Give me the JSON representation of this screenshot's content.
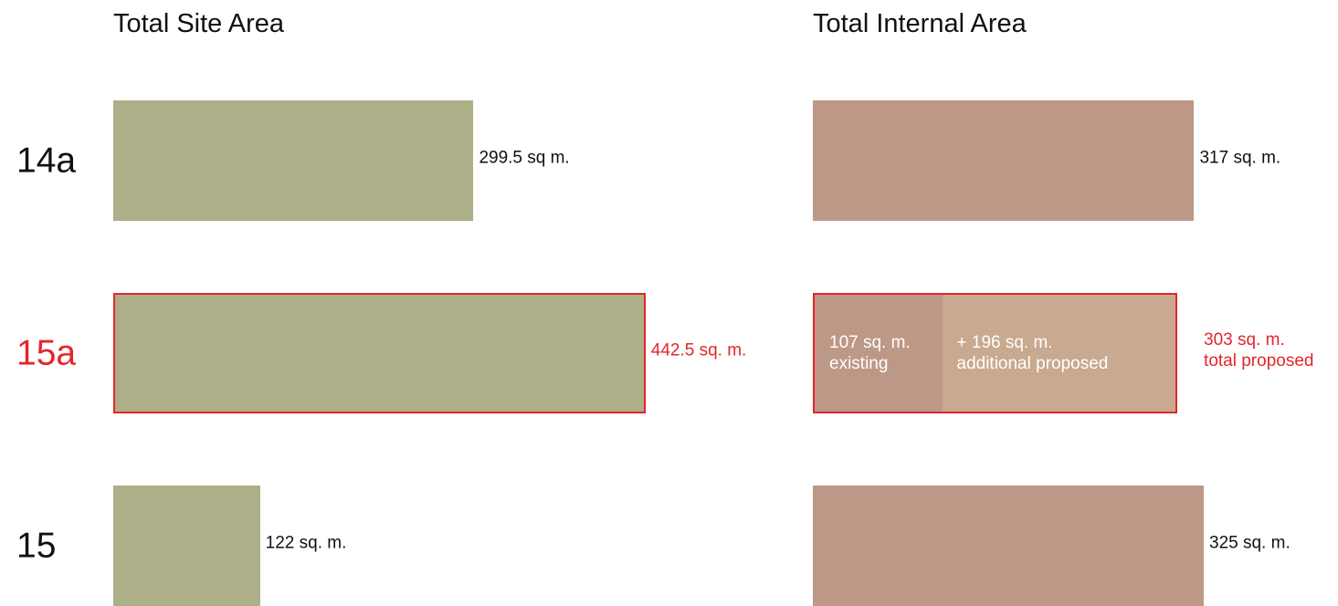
{
  "colors": {
    "site_bar": "#adaf88",
    "internal_bar": "#be9886",
    "proposed_bar": "#c9a98f",
    "highlight": "#e3262b",
    "text": "#111111"
  },
  "chart_data": [
    {
      "type": "bar",
      "orientation": "horizontal",
      "title": "Total Site Area",
      "categories": [
        "14a",
        "15a",
        "15"
      ],
      "values": [
        299.5,
        442.5,
        122
      ],
      "value_labels": [
        "299.5 sq m.",
        "442.5 sq. m.",
        "122 sq. m."
      ],
      "highlighted_category": "15a",
      "bar_color": "#adaf88"
    },
    {
      "type": "bar",
      "orientation": "horizontal",
      "stacked": true,
      "title": "Total Internal Area",
      "categories": [
        "14a",
        "15a",
        "15"
      ],
      "series": [
        {
          "values": [
            317,
            107,
            325
          ],
          "color": "#be9886"
        },
        {
          "values": [
            0,
            196,
            0
          ],
          "color": "#c9a98f"
        }
      ],
      "segment_labels": {
        "15a": [
          [
            "107 sq. m.",
            "existing"
          ],
          [
            "+ 196 sq. m.",
            "additional proposed"
          ]
        ]
      },
      "value_labels": [
        [
          "317 sq. m."
        ],
        [
          "303 sq. m.",
          "total proposed"
        ],
        [
          "325 sq. m."
        ]
      ],
      "highlighted_category": "15a"
    }
  ]
}
